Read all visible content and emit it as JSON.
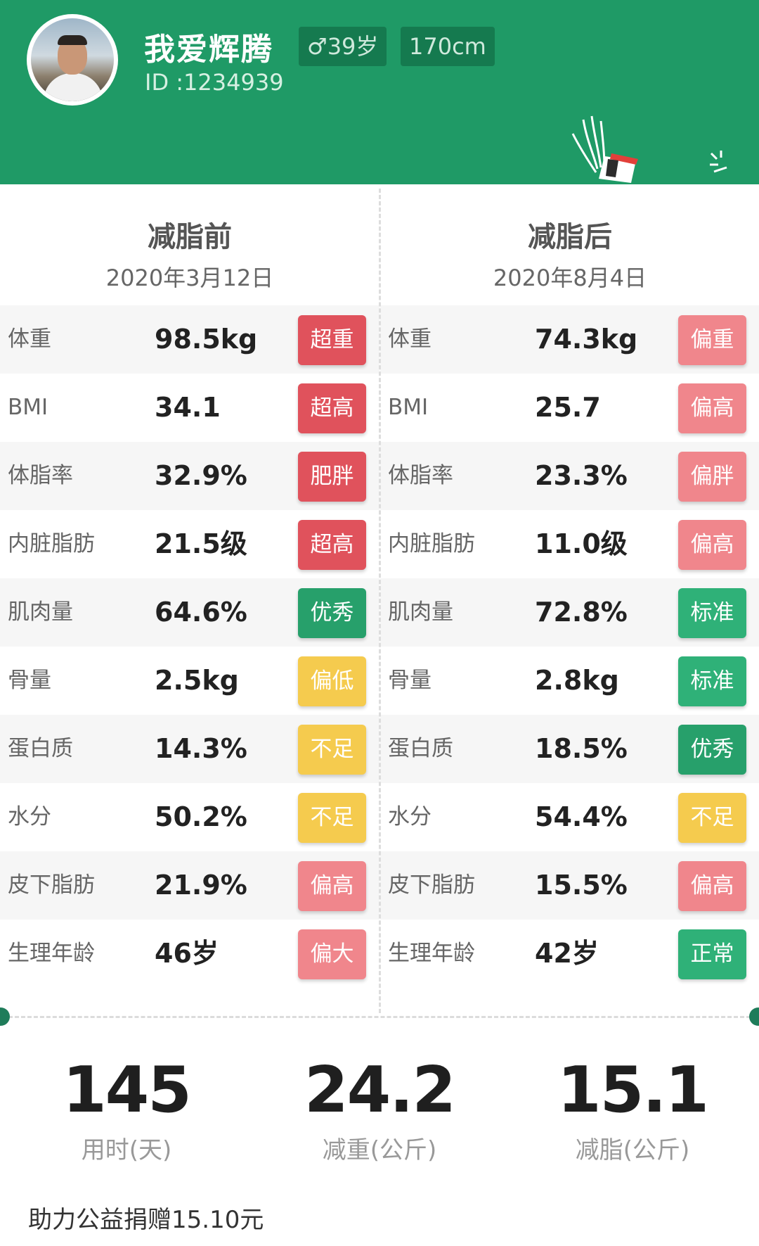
{
  "user": {
    "name": "我爱辉腾",
    "id_text": "ID :1234939",
    "gender_age": "♂39岁",
    "height": "170cm"
  },
  "colors": {
    "header_green": "#1f9a66",
    "red": "#e0525c",
    "pink": "#f0868c",
    "yellow": "#f5cb4e",
    "green": "#2fb178",
    "green_dark": "#27a06b"
  },
  "before": {
    "title": "减脂前",
    "date": "2020年3月12日",
    "rows": [
      {
        "label": "体重",
        "value": "98.5kg",
        "status": "超重",
        "status_color": "#e0525c"
      },
      {
        "label": "BMI",
        "value": "34.1",
        "status": "超高",
        "status_color": "#e0525c"
      },
      {
        "label": "体脂率",
        "value": "32.9%",
        "status": "肥胖",
        "status_color": "#e0525c"
      },
      {
        "label": "内脏脂肪",
        "value": "21.5级",
        "status": "超高",
        "status_color": "#e0525c"
      },
      {
        "label": "肌肉量",
        "value": "64.6%",
        "status": "优秀",
        "status_color": "#27a06b"
      },
      {
        "label": "骨量",
        "value": "2.5kg",
        "status": "偏低",
        "status_color": "#f5cb4e"
      },
      {
        "label": "蛋白质",
        "value": "14.3%",
        "status": "不足",
        "status_color": "#f5cb4e"
      },
      {
        "label": "水分",
        "value": "50.2%",
        "status": "不足",
        "status_color": "#f5cb4e"
      },
      {
        "label": "皮下脂肪",
        "value": "21.9%",
        "status": "偏高",
        "status_color": "#f0868c"
      },
      {
        "label": "生理年龄",
        "value": "46岁",
        "status": "偏大",
        "status_color": "#f0868c"
      }
    ]
  },
  "after": {
    "title": "减脂后",
    "date": "2020年8月4日",
    "rows": [
      {
        "label": "体重",
        "value": "74.3kg",
        "status": "偏重",
        "status_color": "#f0868c"
      },
      {
        "label": "BMI",
        "value": "25.7",
        "status": "偏高",
        "status_color": "#f0868c"
      },
      {
        "label": "体脂率",
        "value": "23.3%",
        "status": "偏胖",
        "status_color": "#f0868c"
      },
      {
        "label": "内脏脂肪",
        "value": "11.0级",
        "status": "偏高",
        "status_color": "#f0868c"
      },
      {
        "label": "肌肉量",
        "value": "72.8%",
        "status": "标准",
        "status_color": "#2fb178"
      },
      {
        "label": "骨量",
        "value": "2.8kg",
        "status": "标准",
        "status_color": "#2fb178"
      },
      {
        "label": "蛋白质",
        "value": "18.5%",
        "status": "优秀",
        "status_color": "#27a06b"
      },
      {
        "label": "水分",
        "value": "54.4%",
        "status": "不足",
        "status_color": "#f5cb4e"
      },
      {
        "label": "皮下脂肪",
        "value": "15.5%",
        "status": "偏高",
        "status_color": "#f0868c"
      },
      {
        "label": "生理年龄",
        "value": "42岁",
        "status": "正常",
        "status_color": "#2fb178"
      }
    ]
  },
  "summary": [
    {
      "value": "145",
      "caption": "用时(天)"
    },
    {
      "value": "24.2",
      "caption": "减重(公斤)"
    },
    {
      "value": "15.1",
      "caption": "减脂(公斤)"
    }
  ],
  "donation": "助力公益捐赠15.10元"
}
